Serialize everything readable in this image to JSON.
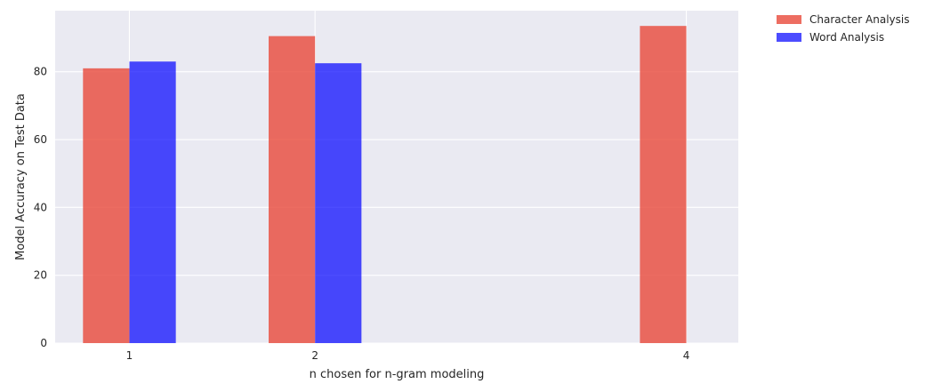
{
  "chart_data": {
    "type": "bar",
    "x_ticks": [
      1,
      2,
      4
    ],
    "xlabel": "n chosen for n-gram modeling",
    "ylabel": "Model Accuracy on Test Data",
    "ylim": [
      0,
      98
    ],
    "y_ticks": [
      0,
      20,
      40,
      60,
      80
    ],
    "xlim": [
      0.6,
      4.28
    ],
    "grid": true,
    "legend_position": "outside-top-right",
    "series": [
      {
        "name": "Character Analysis",
        "color": "#e8483a",
        "opacity": 0.8,
        "points": [
          {
            "x": 1,
            "y": 81
          },
          {
            "x": 2,
            "y": 90.5
          },
          {
            "x": 4,
            "y": 93.5
          }
        ]
      },
      {
        "name": "Word Analysis",
        "color": "#0000ff",
        "opacity": 0.7,
        "points": [
          {
            "x": 1,
            "y": 83
          },
          {
            "x": 2,
            "y": 82.5
          }
        ]
      }
    ]
  }
}
